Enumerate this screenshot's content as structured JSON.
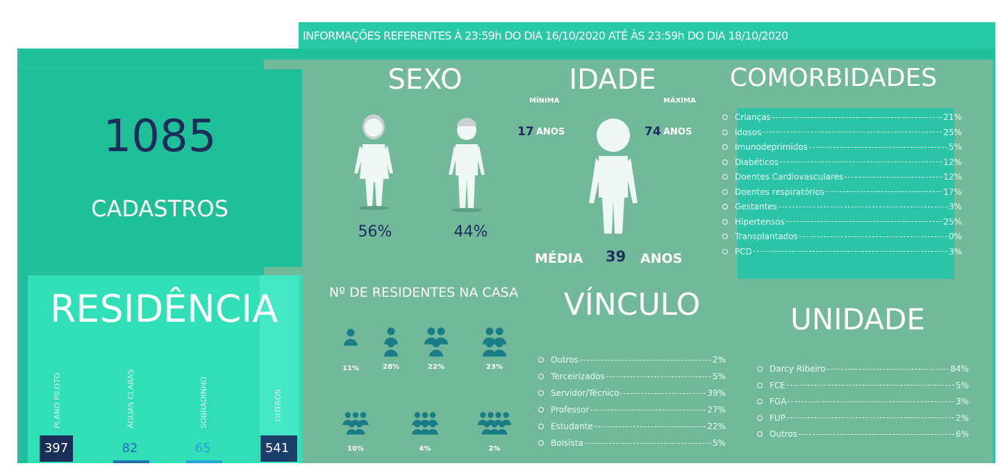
{
  "header": {
    "title": "INFORMAÇÕES REFERENTES À 23:59h DO DIA 16/10/2020 ATÉ ÀS 23:59h DO DIA 18/10/2020"
  },
  "cadastros": {
    "count": "1085",
    "label": "CADASTROS"
  },
  "residencia": {
    "title": "RESIDÊNCIA",
    "items": [
      {
        "label": "PLANO PILOTO",
        "value": "397"
      },
      {
        "label": "ÁGUAS CLARAS",
        "value": "82"
      },
      {
        "label": "SOBRADINHO",
        "value": "65"
      },
      {
        "label": "OUTROS",
        "value": "541"
      }
    ]
  },
  "sexo": {
    "title": "SEXO",
    "female": "56%",
    "male": "44%"
  },
  "idade": {
    "title": "IDADE",
    "min_label": "MÍNIMA",
    "max_label": "MÁXIMA",
    "min_value": "17",
    "max_value": "74",
    "unit": "ANOS",
    "avg_label": "MÉDIA",
    "avg_value": "39"
  },
  "comorbidades": {
    "title": "COMORBIDADES",
    "items": [
      {
        "label": "Crianças",
        "value": "21%"
      },
      {
        "label": "Idosos",
        "value": "25%"
      },
      {
        "label": "Imunodeprimidos",
        "value": "5%"
      },
      {
        "label": "Diabéticos",
        "value": "12%"
      },
      {
        "label": "Doentes Cardiovasculares",
        "value": "12%"
      },
      {
        "label": "Doentes respiratórios",
        "value": "17%"
      },
      {
        "label": "Gestantes",
        "value": "3%"
      },
      {
        "label": "Hipertensos",
        "value": "25%"
      },
      {
        "label": "Transplantados",
        "value": "0%"
      },
      {
        "label": "PCD",
        "value": "3%"
      }
    ]
  },
  "residentes": {
    "title": "Nº DE RESIDENTES NA CASA",
    "groups": [
      "11%",
      "28%",
      "22%",
      "23%",
      "10%",
      "4%",
      "2%"
    ]
  },
  "vinculo": {
    "title": "VÍNCULO",
    "items": [
      {
        "label": "Outros",
        "value": "2%"
      },
      {
        "label": "Terceirizados",
        "value": "5%"
      },
      {
        "label": "Servidor/Técnico",
        "value": "39%"
      },
      {
        "label": "Professor",
        "value": "27%"
      },
      {
        "label": "Estudante",
        "value": "22%"
      },
      {
        "label": "Bolsista",
        "value": "5%"
      }
    ]
  },
  "unidade": {
    "title": "UNIDADE",
    "items": [
      {
        "label": "Darcy Ribeiro",
        "value": "84%"
      },
      {
        "label": "FCE",
        "value": "5%"
      },
      {
        "label": "FGA",
        "value": "3%"
      },
      {
        "label": "FUP",
        "value": "2%"
      },
      {
        "label": "Outros",
        "value": "6%"
      }
    ]
  }
}
